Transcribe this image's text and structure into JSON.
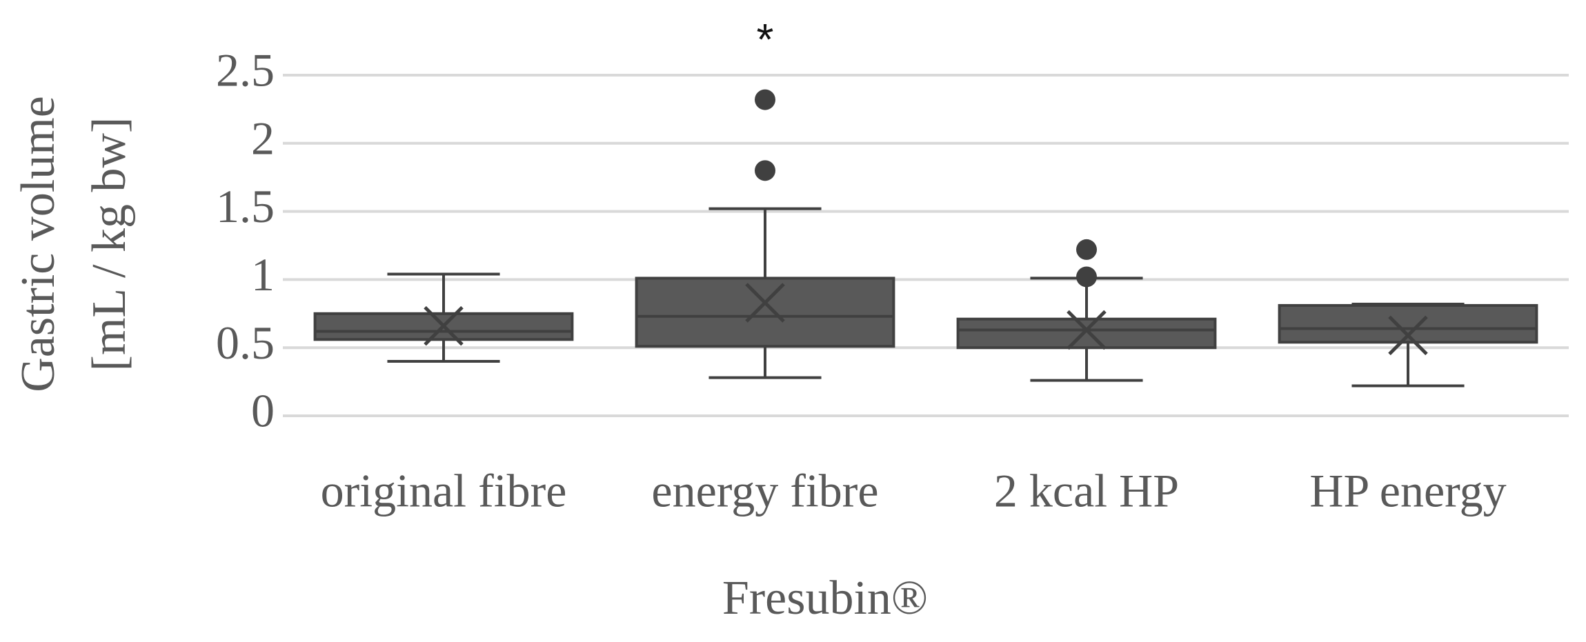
{
  "chart_data": {
    "type": "box",
    "y_title_lines": [
      "Gastric volume",
      "[mL / kg bw]"
    ],
    "x_title": "Fresubin®",
    "annotation": "*",
    "categories": [
      "original fibre",
      "energy fibre",
      "2 kcal HP",
      "HP energy"
    ],
    "boxes": [
      {
        "min": 0.4,
        "q1": 0.56,
        "median": 0.62,
        "q3": 0.75,
        "max": 1.04,
        "mean": 0.66,
        "outliers": []
      },
      {
        "min": 0.28,
        "q1": 0.51,
        "median": 0.73,
        "q3": 1.01,
        "max": 1.52,
        "mean": 0.83,
        "outliers": [
          1.8,
          2.32
        ]
      },
      {
        "min": 0.26,
        "q1": 0.5,
        "median": 0.63,
        "q3": 0.71,
        "max": 1.01,
        "mean": 0.63,
        "outliers": [
          1.02,
          1.22
        ]
      },
      {
        "min": 0.22,
        "q1": 0.54,
        "median": 0.64,
        "q3": 0.81,
        "max": 0.82,
        "mean": 0.59,
        "outliers": []
      }
    ],
    "color": "#595959",
    "line_color": "#404040",
    "ylim": [
      0,
      2.5
    ],
    "yticks": [
      0,
      0.5,
      1,
      1.5,
      2,
      2.5
    ],
    "grid": true
  }
}
